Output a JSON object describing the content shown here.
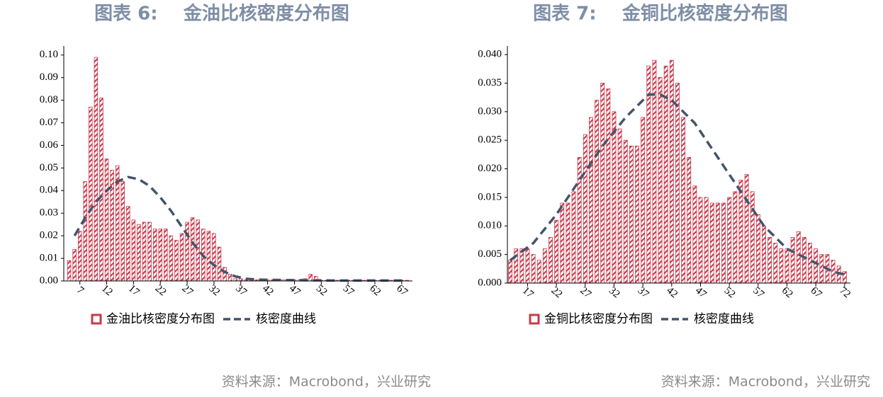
{
  "chart_data": [
    {
      "type": "bar",
      "title": "图表 6:    金油比核密度分布图",
      "source": "资料来源：Macrobond，兴业研究",
      "xlim": [
        4,
        69
      ],
      "xticks": [
        7,
        12,
        17,
        22,
        27,
        32,
        37,
        42,
        47,
        52,
        57,
        62,
        67
      ],
      "ylim": [
        0,
        0.104
      ],
      "yticks": [
        {
          "value": 0,
          "label": "0.00"
        },
        {
          "value": 0.01,
          "label": "0.01"
        },
        {
          "value": 0.02,
          "label": "0.02"
        },
        {
          "value": 0.03,
          "label": "0.03"
        },
        {
          "value": 0.04,
          "label": "0.04"
        },
        {
          "value": 0.05,
          "label": "0.05"
        },
        {
          "value": 0.06,
          "label": "0.06"
        },
        {
          "value": 0.07,
          "label": "0.07"
        },
        {
          "value": 0.08,
          "label": "0.08"
        },
        {
          "value": 0.09,
          "label": "0.09"
        },
        {
          "value": 0.1,
          "label": "0.10"
        }
      ],
      "series": [
        {
          "name": "金油比核密度分布图",
          "type": "bar",
          "color": "#c8394b",
          "x": [
            5,
            6,
            7,
            8,
            9,
            10,
            11,
            12,
            13,
            14,
            15,
            16,
            17,
            18,
            19,
            20,
            21,
            22,
            23,
            24,
            25,
            26,
            27,
            28,
            29,
            30,
            31,
            32,
            33,
            34,
            35,
            36,
            37,
            38,
            39,
            40,
            41,
            42,
            43,
            44,
            45,
            46,
            47,
            48,
            49,
            50,
            51,
            52,
            53,
            54,
            55,
            56,
            57,
            58,
            59,
            60,
            61,
            62,
            63,
            64,
            65,
            66,
            67,
            68
          ],
          "values": [
            0.009,
            0.014,
            0.022,
            0.044,
            0.077,
            0.099,
            0.081,
            0.054,
            0.049,
            0.051,
            0.044,
            0.033,
            0.027,
            0.025,
            0.026,
            0.026,
            0.023,
            0.023,
            0.023,
            0.02,
            0.018,
            0.021,
            0.026,
            0.028,
            0.027,
            0.023,
            0.022,
            0.021,
            0.015,
            0.006,
            0.003,
            0.001,
            0.001,
            0.0005,
            0.0005,
            0.0005,
            0.0005,
            0.0005,
            0.0005,
            0.0005,
            0.0005,
            0.0005,
            0.0005,
            0.0005,
            0.001,
            0.003,
            0.002,
            0.0003,
            0.0003,
            0.0003,
            0.0003,
            0.0003,
            0.0003,
            0.0003,
            0.0003,
            0.0003,
            0.0003,
            0.0003,
            0.0003,
            0.0003,
            0.0003,
            0.0003,
            0.0003,
            0.0003
          ]
        },
        {
          "name": "核密度曲线",
          "type": "line",
          "color": "#44546a",
          "x": [
            6,
            8,
            10,
            12,
            14,
            16,
            18,
            20,
            22,
            24,
            26,
            28,
            30,
            32,
            34,
            36,
            38,
            40,
            45,
            50,
            55,
            60,
            68
          ],
          "values": [
            0.02,
            0.028,
            0.035,
            0.04,
            0.044,
            0.046,
            0.045,
            0.042,
            0.037,
            0.031,
            0.024,
            0.017,
            0.011,
            0.007,
            0.004,
            0.002,
            0.001,
            0.0006,
            0.0004,
            0.0003,
            0.0002,
            0.0002,
            0.0002
          ]
        }
      ]
    },
    {
      "type": "bar",
      "title": "图表 7:    金铜比核密度分布图",
      "source": "资料来源：Macrobond，兴业研究",
      "xlim": [
        13.5,
        73
      ],
      "xticks": [
        17,
        22,
        27,
        32,
        37,
        42,
        47,
        52,
        57,
        62,
        67,
        72
      ],
      "ylim": [
        0,
        0.0415
      ],
      "yticks": [
        {
          "value": 0,
          "label": "0.000"
        },
        {
          "value": 0.005,
          "label": "0.005"
        },
        {
          "value": 0.01,
          "label": "0.010"
        },
        {
          "value": 0.015,
          "label": "0.015"
        },
        {
          "value": 0.02,
          "label": "0.020"
        },
        {
          "value": 0.025,
          "label": "0.025"
        },
        {
          "value": 0.03,
          "label": "0.030"
        },
        {
          "value": 0.035,
          "label": "0.035"
        },
        {
          "value": 0.04,
          "label": "0.040"
        }
      ],
      "series": [
        {
          "name": "金铜比核密度分布图",
          "type": "bar",
          "color": "#c8394b",
          "x": [
            14,
            15,
            16,
            17,
            18,
            19,
            20,
            21,
            22,
            23,
            24,
            25,
            26,
            27,
            28,
            29,
            30,
            31,
            32,
            33,
            34,
            35,
            36,
            37,
            38,
            39,
            40,
            41,
            42,
            43,
            44,
            45,
            46,
            47,
            48,
            49,
            50,
            51,
            52,
            53,
            54,
            55,
            56,
            57,
            58,
            59,
            60,
            61,
            62,
            63,
            64,
            65,
            66,
            67,
            68,
            69,
            70,
            71,
            72
          ],
          "values": [
            0.004,
            0.006,
            0.006,
            0.006,
            0.005,
            0.004,
            0.006,
            0.008,
            0.011,
            0.014,
            0.014,
            0.016,
            0.022,
            0.026,
            0.029,
            0.032,
            0.035,
            0.034,
            0.03,
            0.027,
            0.025,
            0.024,
            0.024,
            0.029,
            0.038,
            0.039,
            0.036,
            0.038,
            0.039,
            0.035,
            0.029,
            0.022,
            0.017,
            0.015,
            0.015,
            0.014,
            0.014,
            0.014,
            0.015,
            0.016,
            0.018,
            0.019,
            0.016,
            0.012,
            0.01,
            0.008,
            0.007,
            0.006,
            0.006,
            0.008,
            0.009,
            0.008,
            0.007,
            0.006,
            0.005,
            0.005,
            0.004,
            0.003,
            0.002
          ]
        },
        {
          "name": "核密度曲线",
          "type": "line",
          "color": "#44546a",
          "x": [
            14,
            18,
            22,
            26,
            30,
            34,
            38,
            40,
            42,
            46,
            50,
            54,
            58,
            62,
            66,
            70,
            72
          ],
          "values": [
            0.004,
            0.007,
            0.012,
            0.018,
            0.024,
            0.029,
            0.033,
            0.033,
            0.032,
            0.028,
            0.022,
            0.016,
            0.01,
            0.006,
            0.004,
            0.002,
            0.0015
          ]
        }
      ]
    }
  ]
}
